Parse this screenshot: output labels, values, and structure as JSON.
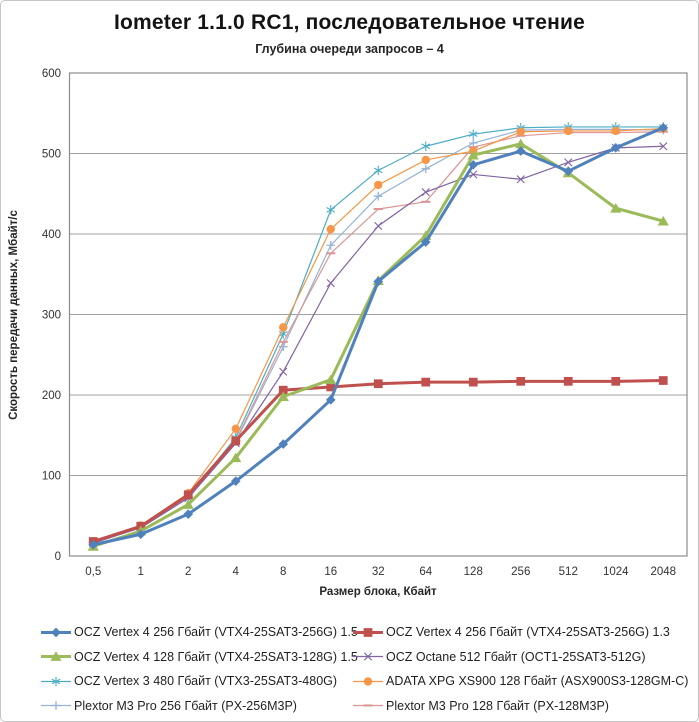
{
  "chart_data": {
    "type": "line",
    "title": "Iometer 1.1.0 RC1, последовательное чтение",
    "subtitle": "Глубина очереди запросов – 4",
    "xlabel": "Размер блока, Кбайт",
    "ylabel": "Скорость передачи данных, Мбайт/с",
    "categories": [
      "0,5",
      "1",
      "2",
      "4",
      "8",
      "16",
      "32",
      "64",
      "128",
      "256",
      "512",
      "1024",
      "2048"
    ],
    "ylim": [
      0,
      600
    ],
    "yticks": [
      0,
      100,
      200,
      300,
      400,
      500,
      600
    ],
    "grid": "horizontal",
    "legend_position": "bottom-two-columns",
    "plot_border_color": "#8c8c8c",
    "gridline_color": "#a0a0a0",
    "series": [
      {
        "name": "OCZ Vertex  4 256 Гбайт (VTX4-25SAT3-256G) 1.5",
        "color": "#4F81BD",
        "marker": "diamond",
        "line_width": 3,
        "legend_column": 0,
        "values": [
          14,
          27,
          52,
          93,
          139,
          194,
          341,
          390,
          486,
          503,
          478,
          507,
          532
        ]
      },
      {
        "name": "OCZ Vertex  4 256 Гбайт (VTX4-25SAT3-256G) 1.3",
        "color": "#C0504D",
        "marker": "square",
        "line_width": 3,
        "legend_column": 1,
        "values": [
          18,
          37,
          76,
          143,
          206,
          210,
          214,
          216,
          216,
          217,
          217,
          217,
          218
        ]
      },
      {
        "name": "OCZ Vertex  4 128 Гбайт (VTX4-25SAT3-128G) 1.5",
        "color": "#9BBB59",
        "marker": "triangle",
        "line_width": 3,
        "legend_column": 0,
        "values": [
          12,
          31,
          64,
          122,
          198,
          219,
          342,
          398,
          498,
          512,
          476,
          432,
          416
        ]
      },
      {
        "name": "OCZ Octane 512 Гбайт (OCT1-25SAT3-512G)",
        "color": "#8064A2",
        "marker": "x",
        "line_width": 1.2,
        "legend_column": 1,
        "values": [
          16,
          35,
          72,
          140,
          229,
          339,
          410,
          452,
          474,
          468,
          489,
          507,
          509
        ]
      },
      {
        "name": "OCZ Vertex  3 480 Гбайт (VTX3-25SAT3-480G)",
        "color": "#4BACC6",
        "marker": "asterisk",
        "line_width": 1.2,
        "legend_column": 0,
        "values": [
          17,
          36,
          74,
          147,
          276,
          430,
          479,
          509,
          524,
          532,
          533,
          533,
          533
        ]
      },
      {
        "name": "ADATA  XPG XS900 128 Гбайт (ASX900S3-128GM-C)",
        "color": "#F79646",
        "marker": "circle",
        "line_width": 1.2,
        "legend_column": 1,
        "values": [
          18,
          38,
          78,
          158,
          284,
          406,
          461,
          492,
          503,
          527,
          528,
          528,
          531
        ]
      },
      {
        "name": "Plextor M3 Pro 256 Гбайт (PX-256M3P)",
        "color": "#95B3D7",
        "marker": "plus",
        "line_width": 1.2,
        "legend_column": 0,
        "values": [
          17,
          36,
          74,
          142,
          260,
          386,
          447,
          481,
          513,
          529,
          530,
          530,
          529
        ]
      },
      {
        "name": "Plextor M3 Pro 128 Гбайт (PX-128M3P)",
        "color": "#D99694",
        "marker": "dash",
        "line_width": 1.2,
        "legend_column": 1,
        "values": [
          17,
          36,
          73,
          143,
          266,
          376,
          431,
          440,
          508,
          522,
          526,
          526,
          527
        ]
      }
    ]
  }
}
